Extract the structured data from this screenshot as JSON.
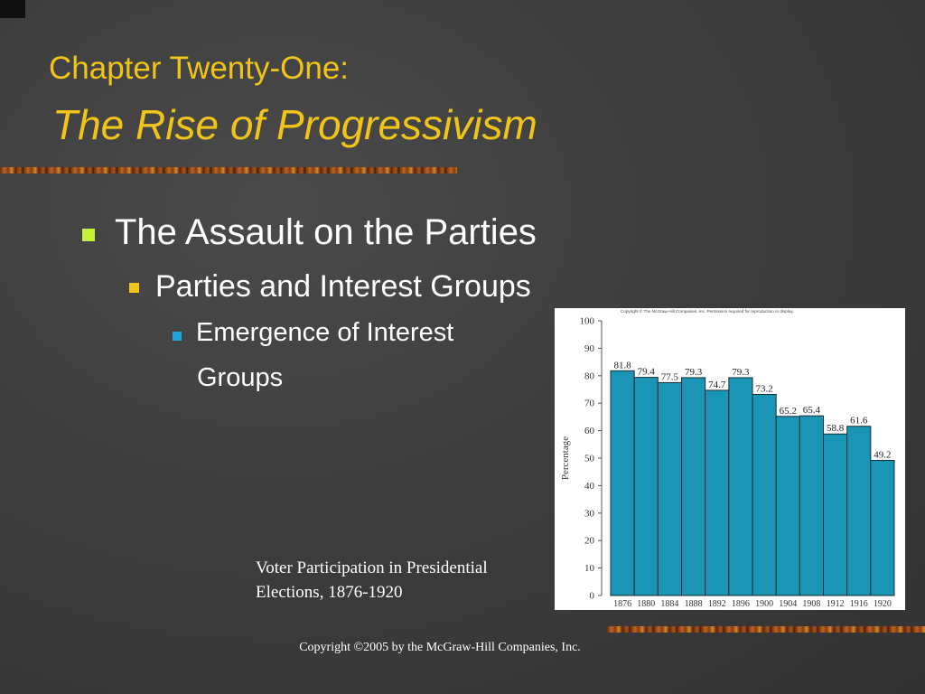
{
  "slide": {
    "title_line1": "Chapter Twenty-One:",
    "title_line2": "The Rise of Progressivism",
    "bullet1": "The Assault on the Parties",
    "bullet2": "Parties and Interest Groups",
    "bullet3_line1": "Emergence of Interest",
    "bullet3_line2": "Groups",
    "caption_line1": "Voter Participation in Presidential",
    "caption_line2": "Elections, 1876-1920",
    "footer": "Copyright ©2005 by the McGraw-Hill Companies, Inc.",
    "colors": {
      "title": "#f0c419",
      "bullet_level1": "#c5f13a",
      "bullet_level2": "#f0c419",
      "bullet_level3": "#1aa6d8"
    }
  },
  "chart_data": {
    "type": "bar",
    "title": "",
    "copyright_note": "Copyright © The McGraw-Hill Companies, Inc. Permission required for reproduction or display.",
    "xlabel": "",
    "ylabel": "Percentage",
    "categories": [
      "1876",
      "1880",
      "1884",
      "1888",
      "1892",
      "1896",
      "1900",
      "1904",
      "1908",
      "1912",
      "1916",
      "1920"
    ],
    "values": [
      81.8,
      79.4,
      77.5,
      79.3,
      74.7,
      79.3,
      73.2,
      65.2,
      65.4,
      58.8,
      61.6,
      49.2
    ],
    "data_labels": [
      "81.8",
      "79.4",
      "77.5",
      "79.3",
      "74.7",
      "79.3",
      "73.2",
      "65.2",
      "65.4",
      "58.8",
      "61.6",
      "49.2"
    ],
    "ylim": [
      0,
      100
    ],
    "yticks": [
      0,
      10,
      20,
      30,
      40,
      50,
      60,
      70,
      80,
      90,
      100
    ],
    "grid": false,
    "bar_color": "#1b95b6"
  }
}
